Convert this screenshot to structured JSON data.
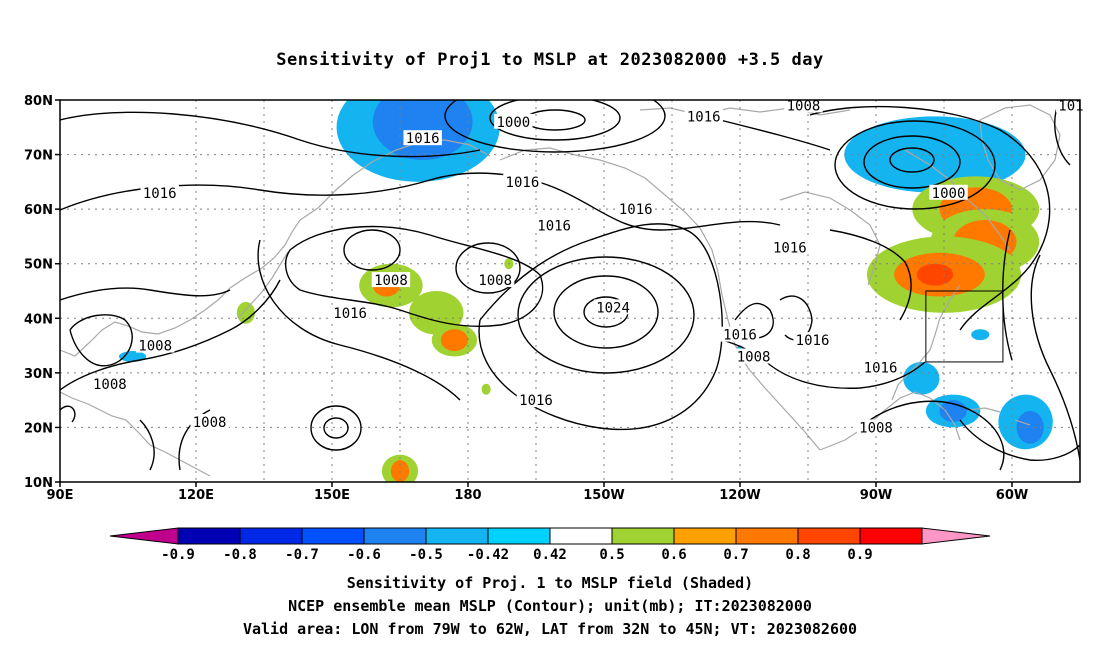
{
  "title": "Sensitivity of Proj1 to MSLP at 2023082000 +3.5 day",
  "map": {
    "lat_ticks": [
      "80N",
      "70N",
      "60N",
      "50N",
      "40N",
      "30N",
      "20N",
      "10N"
    ],
    "lon_ticks": [
      "90E",
      "120E",
      "150E",
      "180",
      "150W",
      "120W",
      "90W",
      "60W"
    ],
    "lon_range": [
      90,
      315
    ],
    "lat_range": [
      10,
      80
    ],
    "grid": true,
    "valid_box": {
      "lon_west": -79,
      "lon_east": -62,
      "lat_south": 32,
      "lat_north": 45
    },
    "contour_labels": [
      {
        "text": "1016",
        "lon": 195,
        "lat": 25
      },
      {
        "text": "1024",
        "lon": 212,
        "lat": 42
      },
      {
        "text": "1000",
        "lon": 190,
        "lat": 76
      },
      {
        "text": "1016",
        "lon": 170,
        "lat": 73
      },
      {
        "text": "1016",
        "lon": 192,
        "lat": 65
      },
      {
        "text": "1016",
        "lon": 199,
        "lat": 57
      },
      {
        "text": "1016",
        "lon": 112,
        "lat": 63
      },
      {
        "text": "1016",
        "lon": 217,
        "lat": 60
      },
      {
        "text": "1016",
        "lon": 232,
        "lat": 77
      },
      {
        "text": "1008",
        "lon": 254,
        "lat": 79
      },
      {
        "text": "1000",
        "lon": 286,
        "lat": 63
      },
      {
        "text": "1016",
        "lon": 251,
        "lat": 53
      },
      {
        "text": "1008",
        "lon": 163,
        "lat": 47
      },
      {
        "text": "1008",
        "lon": 186,
        "lat": 47
      },
      {
        "text": "1016",
        "lon": 154,
        "lat": 41
      },
      {
        "text": "1008",
        "lon": 111,
        "lat": 35
      },
      {
        "text": "1008",
        "lon": 101,
        "lat": 28
      },
      {
        "text": "1008",
        "lon": 123,
        "lat": 21
      },
      {
        "text": "1016",
        "lon": 240,
        "lat": 37
      },
      {
        "text": "1016",
        "lon": 256,
        "lat": 36
      },
      {
        "text": "1008",
        "lon": 243,
        "lat": 33
      },
      {
        "text": "1016",
        "lon": 271,
        "lat": 31
      },
      {
        "text": "1008",
        "lon": 270,
        "lat": 20
      },
      {
        "text": "101",
        "lon": 313,
        "lat": 79
      }
    ]
  },
  "colorbar": {
    "labels": [
      "-0.9",
      "-0.8",
      "-0.7",
      "-0.6",
      "-0.5",
      "-0.42",
      "0.42",
      "0.5",
      "0.6",
      "0.7",
      "0.8",
      "0.9"
    ],
    "colors": [
      "#c0008c",
      "#0000b4",
      "#0028e6",
      "#0050ff",
      "#1e82f0",
      "#14b4f0",
      "#00d2ff",
      "#ffffff",
      "#a0d232",
      "#ffa000",
      "#ff7800",
      "#ff4600",
      "#ff0000",
      "#ff96c8"
    ]
  },
  "shading": [
    {
      "lon": 169,
      "lat": 75,
      "rx": 18,
      "ry": 10,
      "color": "#14b4f0"
    },
    {
      "lon": 170,
      "lat": 76,
      "rx": 11,
      "ry": 7,
      "color": "#1e82f0"
    },
    {
      "lon": 283,
      "lat": 70,
      "rx": 20,
      "ry": 7,
      "color": "#14b4f0"
    },
    {
      "lon": 292,
      "lat": 60,
      "rx": 14,
      "ry": 6,
      "color": "#a0d232"
    },
    {
      "lon": 292,
      "lat": 60,
      "rx": 8,
      "ry": 4,
      "color": "#ff7800"
    },
    {
      "lon": 294,
      "lat": 54,
      "rx": 12,
      "ry": 6,
      "color": "#a0d232"
    },
    {
      "lon": 294,
      "lat": 54,
      "rx": 7,
      "ry": 4,
      "color": "#ff7800"
    },
    {
      "lon": 285,
      "lat": 48,
      "rx": 17,
      "ry": 7,
      "color": "#a0d232"
    },
    {
      "lon": 284,
      "lat": 48,
      "rx": 10,
      "ry": 4,
      "color": "#ff7800"
    },
    {
      "lon": 283,
      "lat": 48,
      "rx": 4,
      "ry": 2,
      "color": "#ff4600"
    },
    {
      "lon": 163,
      "lat": 46,
      "rx": 7,
      "ry": 4,
      "color": "#a0d232"
    },
    {
      "lon": 162,
      "lat": 46,
      "rx": 3,
      "ry": 2,
      "color": "#ff7800"
    },
    {
      "lon": 173,
      "lat": 41,
      "rx": 6,
      "ry": 4,
      "color": "#a0d232"
    },
    {
      "lon": 177,
      "lat": 36,
      "rx": 5,
      "ry": 3,
      "color": "#a0d232"
    },
    {
      "lon": 177,
      "lat": 36,
      "rx": 3,
      "ry": 2,
      "color": "#ff7800"
    },
    {
      "lon": 165,
      "lat": 12,
      "rx": 4,
      "ry": 3,
      "color": "#a0d232"
    },
    {
      "lon": 165,
      "lat": 12,
      "rx": 2,
      "ry": 2,
      "color": "#ff7800"
    },
    {
      "lon": 280,
      "lat": 29,
      "rx": 4,
      "ry": 3,
      "color": "#14b4f0"
    },
    {
      "lon": 287,
      "lat": 23,
      "rx": 6,
      "ry": 3,
      "color": "#14b4f0"
    },
    {
      "lon": 287,
      "lat": 23,
      "rx": 3,
      "ry": 2,
      "color": "#1e82f0"
    },
    {
      "lon": 303,
      "lat": 21,
      "rx": 6,
      "ry": 5,
      "color": "#14b4f0"
    },
    {
      "lon": 304,
      "lat": 20,
      "rx": 3,
      "ry": 3,
      "color": "#1e82f0"
    },
    {
      "lon": 106,
      "lat": 33,
      "rx": 3,
      "ry": 1,
      "color": "#14b4f0"
    },
    {
      "lon": 131,
      "lat": 41,
      "rx": 2,
      "ry": 2,
      "color": "#a0d232"
    },
    {
      "lon": 189,
      "lat": 50,
      "rx": 1,
      "ry": 1,
      "color": "#a0d232"
    },
    {
      "lon": 184,
      "lat": 27,
      "rx": 1,
      "ry": 1,
      "color": "#a0d232"
    },
    {
      "lon": 293,
      "lat": 37,
      "rx": 2,
      "ry": 1,
      "color": "#14b4f0"
    },
    {
      "lon": 240,
      "lat": 34,
      "rx": 1,
      "ry": 1,
      "color": "#14b4f0"
    }
  ],
  "footer": {
    "line1": "Sensitivity of Proj. 1 to MSLP field (Shaded)",
    "line2": "NCEP ensemble mean MSLP (Contour); unit(mb); IT:2023082000",
    "line3": "Valid area: LON from 79W to 62W, LAT from 32N to 45N; VT: 2023082600"
  }
}
